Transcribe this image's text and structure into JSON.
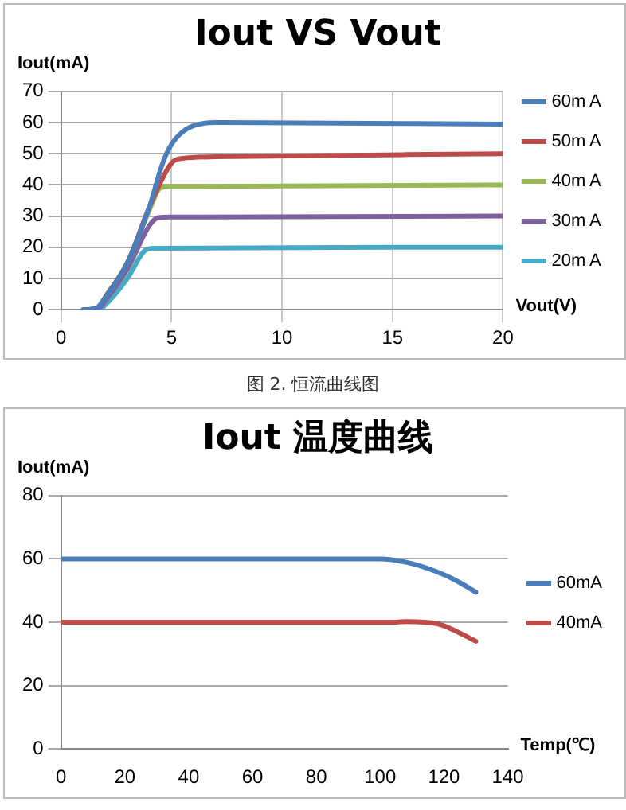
{
  "chart_data": [
    {
      "type": "line",
      "title": "Iout VS Vout",
      "xlabel": "Vout(V)",
      "ylabel": "Iout(mA)",
      "xlim": [
        0,
        20
      ],
      "xticks": [
        0,
        5,
        10,
        15,
        20
      ],
      "ylim": [
        0,
        70
      ],
      "yticks": [
        0,
        10,
        20,
        30,
        40,
        50,
        60,
        70
      ],
      "grid": true,
      "legend": "right",
      "marker": "none",
      "annotations": [
        "图 2. 恒流曲线图"
      ],
      "series": [
        {
          "name": "60m A",
          "color": "#4a7ebb",
          "x": [
            1,
            1.6,
            2,
            3,
            4,
            4.6,
            5,
            5.5,
            6,
            7,
            20
          ],
          "values": [
            0,
            0.5,
            4,
            15,
            33,
            47,
            53,
            57,
            59,
            60,
            59.5
          ]
        },
        {
          "name": "50m A",
          "color": "#be4b48",
          "x": [
            2,
            3,
            4,
            5,
            5.5,
            7,
            20
          ],
          "values": [
            4,
            15,
            33,
            47,
            48.5,
            49,
            50
          ]
        },
        {
          "name": "40m A",
          "color": "#98b954",
          "x": [
            2,
            3,
            4,
            4.5,
            5,
            20
          ],
          "values": [
            4,
            15,
            32,
            39,
            39.5,
            40
          ]
        },
        {
          "name": "30m A",
          "color": "#7d60a0",
          "x": [
            1,
            1.7,
            2,
            3,
            4,
            4.4,
            5,
            20
          ],
          "values": [
            0,
            0.5,
            3,
            13,
            27,
            29.5,
            29.7,
            30
          ]
        },
        {
          "name": "20m A",
          "color": "#46aac5",
          "x": [
            1.2,
            1.8,
            2.2,
            3,
            3.8,
            4.2,
            20
          ],
          "values": [
            0,
            0.5,
            3,
            10,
            19,
            19.7,
            20
          ]
        }
      ]
    },
    {
      "type": "line",
      "title": "Iout 温度曲线",
      "xlabel": "Temp(℃)",
      "ylabel": "Iout(mA)",
      "xlim": [
        0,
        140
      ],
      "xticks": [
        0,
        20,
        40,
        60,
        80,
        100,
        120,
        140
      ],
      "ylim": [
        0,
        80
      ],
      "yticks": [
        0,
        20,
        40,
        60,
        80
      ],
      "grid": "y",
      "legend": "right",
      "marker": "none",
      "series": [
        {
          "name": "60mA",
          "color": "#4a7ebb",
          "x": [
            0,
            95,
            100,
            110,
            120,
            125,
            130
          ],
          "values": [
            60,
            60,
            60,
            58.5,
            55,
            52.5,
            49.5
          ]
        },
        {
          "name": "40mA",
          "color": "#be4b48",
          "x": [
            0,
            105,
            108,
            118,
            122,
            130
          ],
          "values": [
            40,
            40,
            40.2,
            39.5,
            38,
            34
          ]
        }
      ]
    }
  ]
}
